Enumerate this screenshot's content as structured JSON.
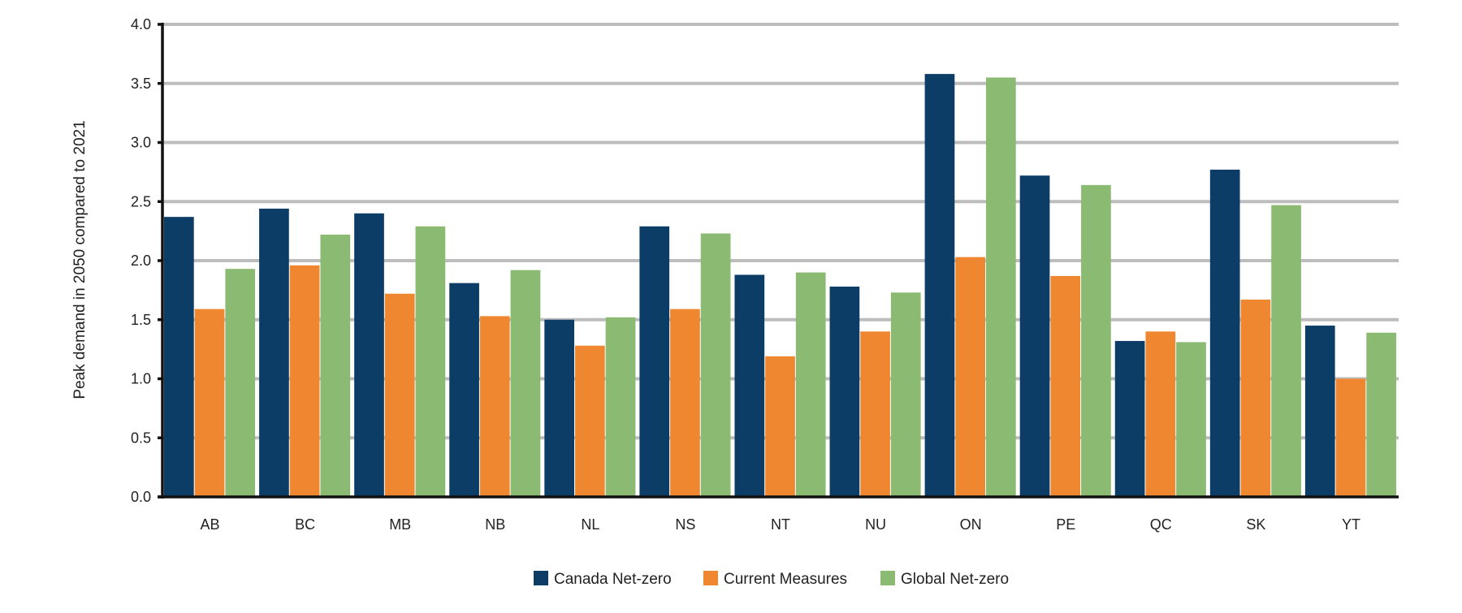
{
  "chart_data": {
    "type": "bar",
    "title": "",
    "xlabel": "",
    "ylabel": "Peak demand in 2050 compared to 2021",
    "ylim": [
      0,
      4.0
    ],
    "yticks": [
      "0.0",
      "0.5",
      "1.0",
      "1.5",
      "2.0",
      "2.5",
      "3.0",
      "3.5",
      "4.0"
    ],
    "grid": true,
    "legend_position": "bottom",
    "categories": [
      "AB",
      "BC",
      "MB",
      "NB",
      "NL",
      "NS",
      "NT",
      "NU",
      "ON",
      "PE",
      "QC",
      "SK",
      "YT"
    ],
    "series": [
      {
        "name": "Canada Net-zero",
        "color": "#0b3d66",
        "values": [
          2.37,
          2.44,
          2.4,
          1.81,
          1.5,
          2.29,
          1.88,
          1.78,
          3.58,
          2.72,
          1.32,
          2.77,
          1.45
        ]
      },
      {
        "name": "Current Measures",
        "color": "#ef8630",
        "values": [
          1.59,
          1.96,
          1.72,
          1.53,
          1.28,
          1.59,
          1.19,
          1.4,
          2.03,
          1.87,
          1.4,
          1.67,
          1.0
        ]
      },
      {
        "name": "Global Net-zero",
        "color": "#8bba72",
        "values": [
          1.93,
          2.22,
          2.29,
          1.92,
          1.52,
          2.23,
          1.9,
          1.73,
          3.55,
          2.64,
          1.31,
          2.47,
          1.39
        ]
      }
    ]
  }
}
